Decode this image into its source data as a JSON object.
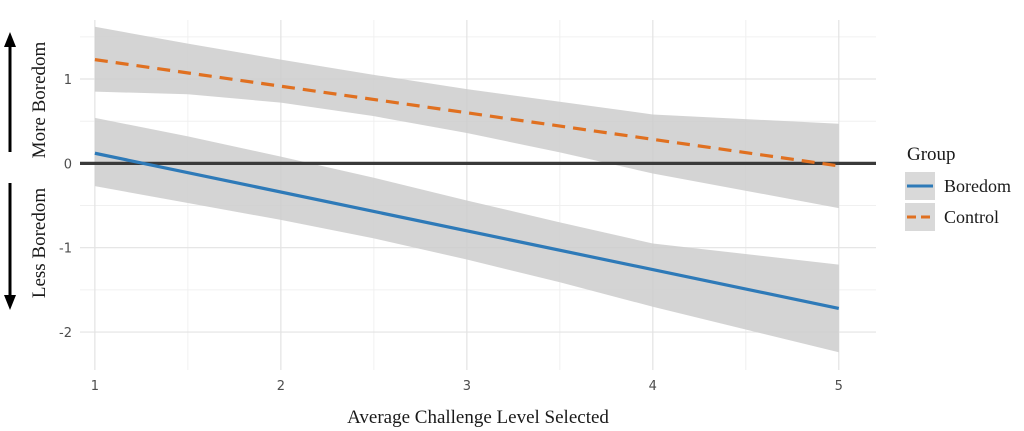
{
  "chart_data": {
    "type": "line",
    "xlabel": "Average Challenge Level Selected",
    "ylabel_top": "More Boredom",
    "ylabel_bottom": "Less Boredom",
    "xlim": [
      0.92,
      5.2
    ],
    "ylim": [
      -2.45,
      1.7
    ],
    "x_ticks": [
      1,
      2,
      3,
      4,
      5
    ],
    "y_ticks": [
      -2,
      -1,
      0,
      1
    ],
    "x_minor": [
      1.5,
      2.5,
      3.5,
      4.5
    ],
    "y_minor": [
      -1.5,
      -0.5,
      0.5,
      1.5
    ],
    "reference_line": 0,
    "grid": true,
    "legend": {
      "title": "Group",
      "placement": "right"
    },
    "series": [
      {
        "name": "Boredom",
        "color": "#2e7ab8",
        "style": "solid",
        "x": [
          1,
          5
        ],
        "y": [
          0.12,
          -1.72
        ],
        "ci_upper": [
          0.54,
          0.32,
          0.08,
          -0.17,
          -0.44,
          -0.7,
          -0.95,
          -1.2
        ],
        "ci_lower": [
          -0.27,
          -0.47,
          -0.67,
          -0.89,
          -1.14,
          -1.41,
          -1.7,
          -2.24
        ],
        "ci_x": [
          1,
          1.5,
          2,
          2.5,
          3,
          3.5,
          4,
          5
        ]
      },
      {
        "name": "Control",
        "color": "#e07020",
        "style": "dashed",
        "x": [
          1,
          5
        ],
        "y": [
          1.23,
          -0.03
        ],
        "ci_upper": [
          1.62,
          1.42,
          1.23,
          1.05,
          0.88,
          0.73,
          0.58,
          0.47
        ],
        "ci_lower": [
          0.85,
          0.82,
          0.72,
          0.56,
          0.36,
          0.13,
          -0.12,
          -0.53
        ],
        "ci_x": [
          1,
          1.5,
          2,
          2.5,
          3,
          3.5,
          4,
          5
        ]
      }
    ]
  }
}
